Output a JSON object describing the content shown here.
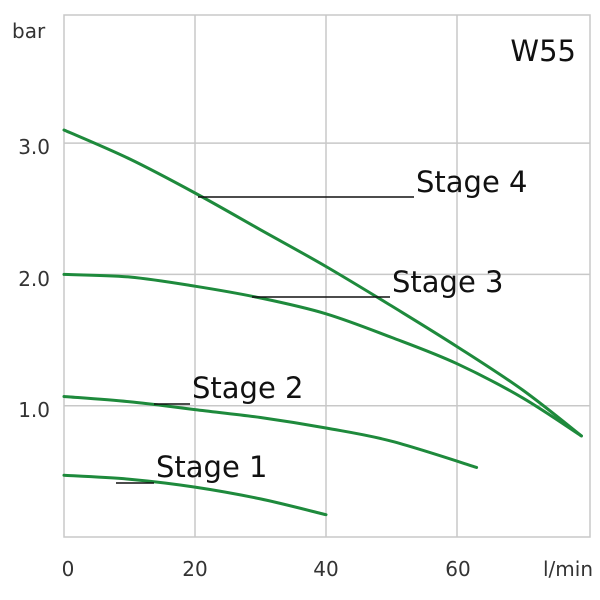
{
  "chart_data": {
    "type": "line",
    "title": "W55",
    "xlabel": "l/min",
    "ylabel": "bar",
    "xlim": [
      0,
      80
    ],
    "ylim": [
      0,
      4.0
    ],
    "x_ticks": [
      0,
      20,
      40,
      60
    ],
    "x_tick_labels": [
      "0",
      "20",
      "40",
      "60"
    ],
    "y_ticks": [
      1,
      2,
      3
    ],
    "y_tick_labels": [
      "1.0",
      "2.0",
      "3.0"
    ],
    "grid": true,
    "line_color": "#1e8a3c",
    "series": [
      {
        "name": "Stage 1",
        "x": [
          0,
          10,
          20,
          30,
          40
        ],
        "y": [
          0.47,
          0.44,
          0.38,
          0.29,
          0.17
        ]
      },
      {
        "name": "Stage 2",
        "x": [
          0,
          10,
          20,
          30,
          40,
          50,
          63
        ],
        "y": [
          1.07,
          1.03,
          0.97,
          0.91,
          0.83,
          0.73,
          0.53
        ]
      },
      {
        "name": "Stage 3",
        "x": [
          0,
          10,
          20,
          30,
          40,
          50,
          60,
          70,
          79
        ],
        "y": [
          2.0,
          1.98,
          1.91,
          1.82,
          1.7,
          1.52,
          1.32,
          1.06,
          0.77
        ]
      },
      {
        "name": "Stage 4",
        "x": [
          0,
          10,
          20,
          30,
          40,
          50,
          60,
          70,
          79
        ],
        "y": [
          3.1,
          2.88,
          2.62,
          2.34,
          2.06,
          1.76,
          1.45,
          1.12,
          0.77
        ]
      }
    ]
  }
}
